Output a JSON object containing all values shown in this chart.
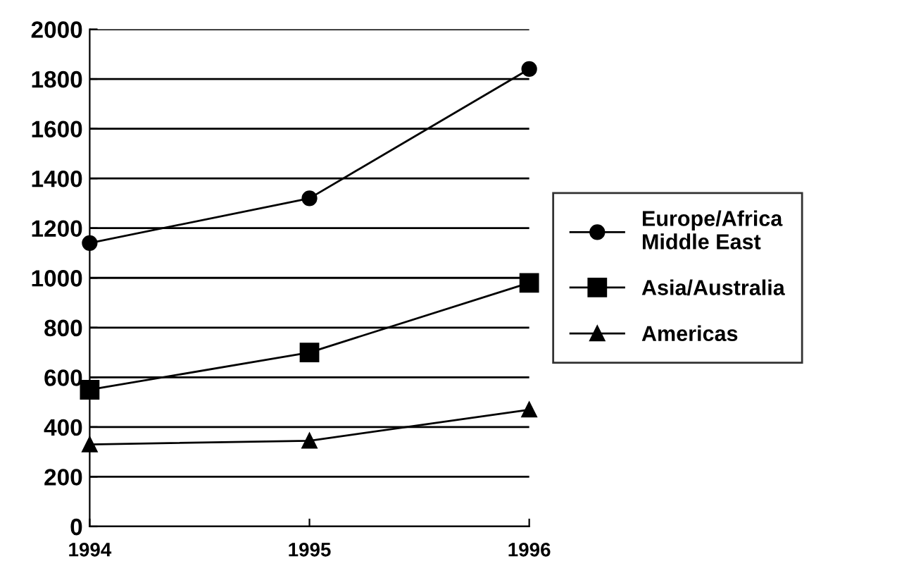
{
  "chart_data": {
    "type": "line",
    "categories": [
      "1994",
      "1995",
      "1996"
    ],
    "series": [
      {
        "name": "Europe/Africa\nMiddle East",
        "color": "#000000",
        "marker": "circle",
        "values": [
          1140,
          1320,
          1840
        ]
      },
      {
        "name": "Asia/Australia",
        "color": "#000000",
        "marker": "square",
        "values": [
          550,
          700,
          980
        ]
      },
      {
        "name": "Americas",
        "color": "#000000",
        "marker": "triangle",
        "values": [
          330,
          345,
          470
        ]
      }
    ],
    "ylim": [
      0,
      2000
    ],
    "yticks": [
      0,
      200,
      400,
      600,
      800,
      1000,
      1200,
      1400,
      1600,
      1800,
      2000
    ],
    "grid": "y",
    "legend": "right",
    "line_style": "solid"
  }
}
